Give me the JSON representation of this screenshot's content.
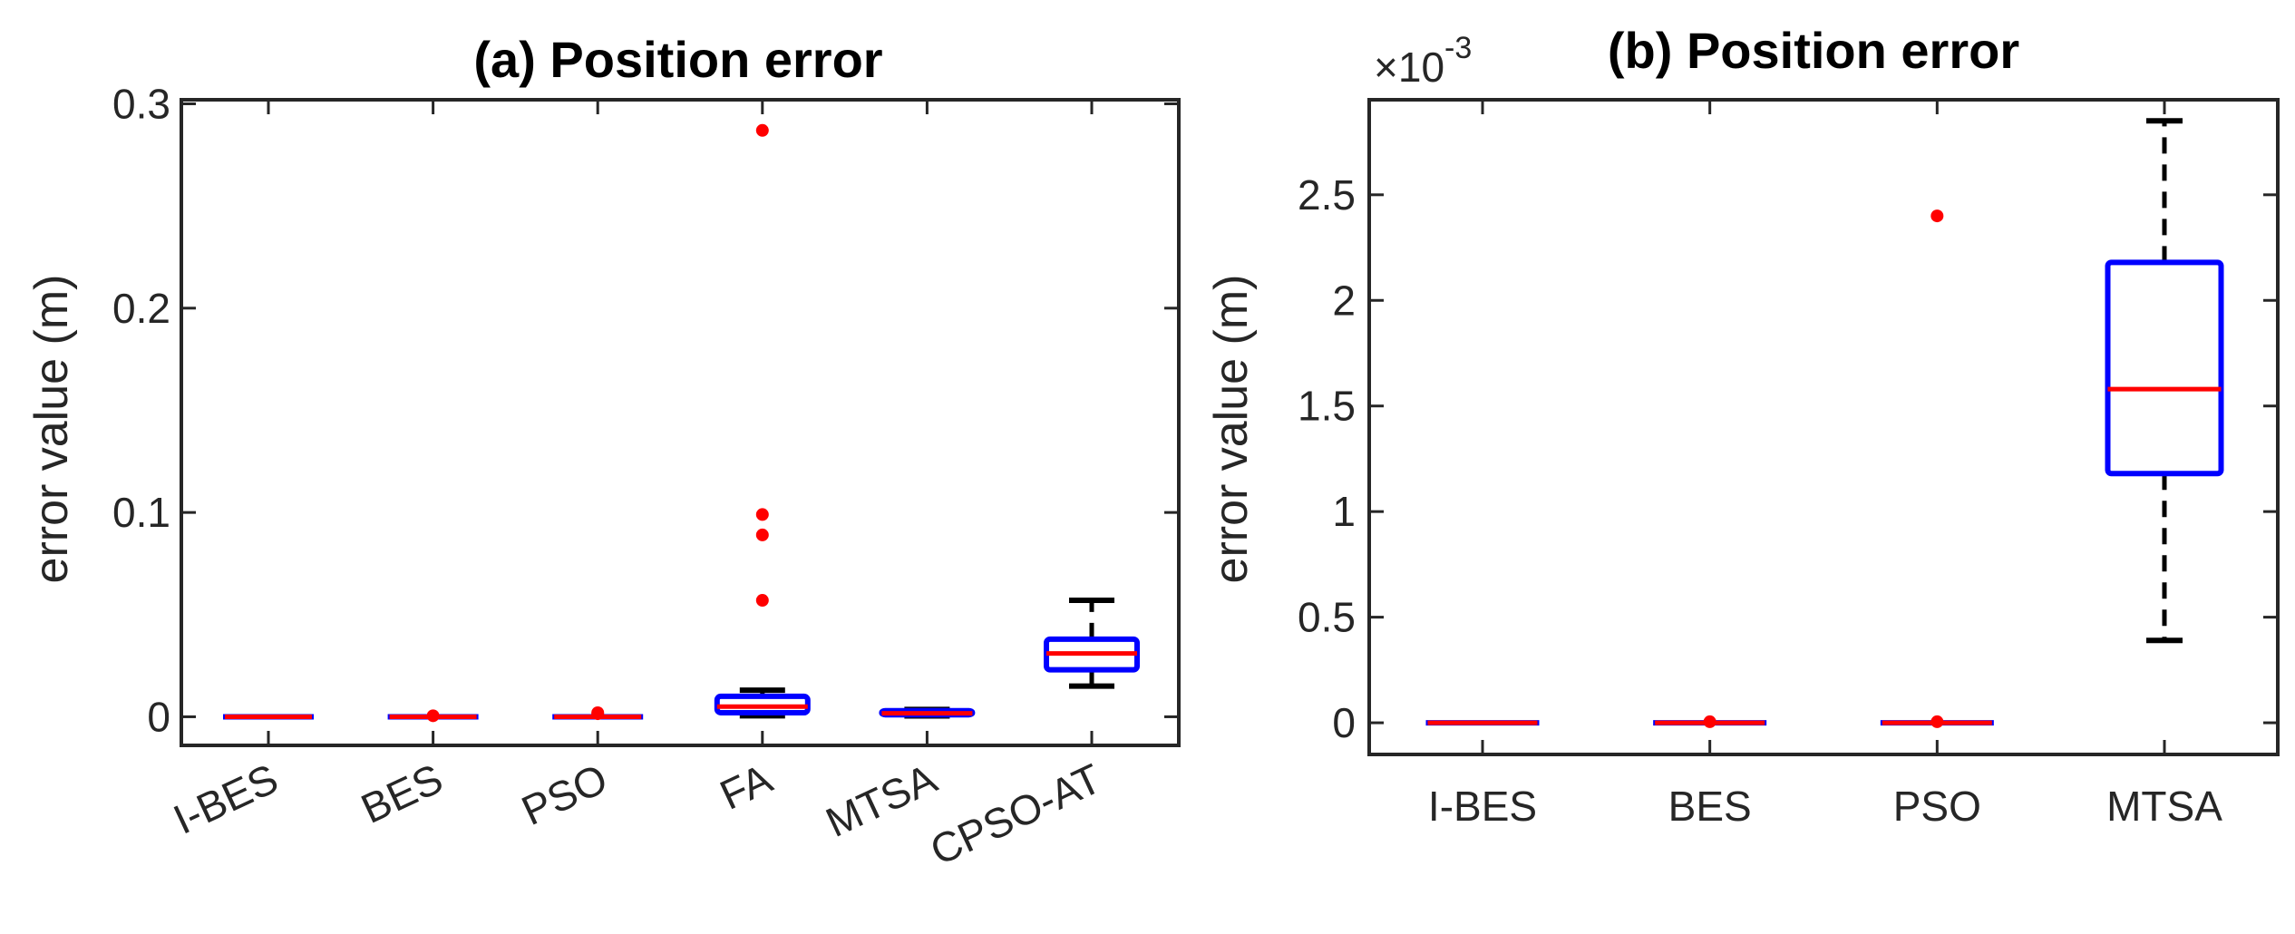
{
  "colors": {
    "box": "#0000ff",
    "median": "#ff0000",
    "whisker": "#000000",
    "outlier": "#ff0000",
    "axis": "#262626"
  },
  "chart_data": [
    {
      "type": "box",
      "title": "(a) Position error",
      "ylabel": "error value (m)",
      "xlabel": "",
      "ylim": [
        -0.014,
        0.302
      ],
      "yticks": [
        0,
        0.1,
        0.2,
        0.3
      ],
      "ytick_labels": [
        "0",
        "0.1",
        "0.2",
        "0.3"
      ],
      "categories": [
        "I-BES",
        "BES",
        "PSO",
        "FA",
        "MTSA",
        "CPSO-AT"
      ],
      "boxes": [
        {
          "name": "I-BES",
          "q1": 0,
          "median": 0,
          "q3": 0,
          "whisker_low": 0,
          "whisker_high": 0,
          "outliers": []
        },
        {
          "name": "BES",
          "q1": 0,
          "median": 0,
          "q3": 0,
          "whisker_low": 0,
          "whisker_high": 0,
          "outliers": [
            0.0005
          ]
        },
        {
          "name": "PSO",
          "q1": 0,
          "median": 0,
          "q3": 0,
          "whisker_low": 0,
          "whisker_high": 0,
          "outliers": [
            0.0015,
            0.002
          ]
        },
        {
          "name": "FA",
          "q1": 0.002,
          "median": 0.005,
          "q3": 0.01,
          "whisker_low": 0.0005,
          "whisker_high": 0.013,
          "outliers": [
            0.057,
            0.089,
            0.099,
            0.287
          ]
        },
        {
          "name": "MTSA",
          "q1": 0.001,
          "median": 0.0017,
          "q3": 0.003,
          "whisker_low": 0.0004,
          "whisker_high": 0.0036,
          "outliers": []
        },
        {
          "name": "CPSO-AT",
          "q1": 0.023,
          "median": 0.031,
          "q3": 0.038,
          "whisker_low": 0.015,
          "whisker_high": 0.057,
          "outliers": []
        }
      ]
    },
    {
      "type": "box",
      "title": "(b) Position error",
      "ylabel": "error value (m)",
      "xlabel": "",
      "exponent_label": "×10",
      "exponent_power": "-3",
      "ylim": [
        -0.15,
        2.95
      ],
      "yticks": [
        0,
        0.5,
        1,
        1.5,
        2,
        2.5
      ],
      "ytick_labels": [
        "0",
        "0.5",
        "1",
        "1.5",
        "2",
        "2.5"
      ],
      "categories": [
        "I-BES",
        "BES",
        "PSO",
        "MTSA"
      ],
      "boxes": [
        {
          "name": "I-BES",
          "q1": 0,
          "median": 0,
          "q3": 0,
          "whisker_low": 0,
          "whisker_high": 0,
          "outliers": []
        },
        {
          "name": "BES",
          "q1": 0,
          "median": 0,
          "q3": 0,
          "whisker_low": 0,
          "whisker_high": 0,
          "outliers": [
            0.005
          ]
        },
        {
          "name": "PSO",
          "q1": 0,
          "median": 0,
          "q3": 0,
          "whisker_low": 0,
          "whisker_high": 0,
          "outliers": [
            0.005,
            2.4
          ]
        },
        {
          "name": "MTSA",
          "q1": 1.18,
          "median": 1.58,
          "q3": 2.18,
          "whisker_low": 0.39,
          "whisker_high": 2.85,
          "outliers": []
        }
      ]
    }
  ]
}
